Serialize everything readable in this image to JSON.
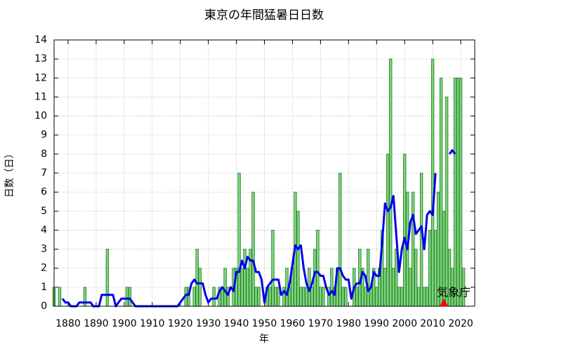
{
  "chart_data": {
    "type": "bar",
    "title": "東京の年間猛暑日日数",
    "xlabel": "年",
    "ylabel": "日数（日）",
    "annotation": "気象庁",
    "annotation_x": 2014,
    "annotation_color": "#ff0000",
    "grid": true,
    "xlim": [
      1875,
      2025
    ],
    "ylim": [
      0,
      14
    ],
    "xticks": [
      1880,
      1890,
      1900,
      1910,
      1920,
      1930,
      1940,
      1950,
      1960,
      1970,
      1980,
      1990,
      2000,
      2010,
      2020
    ],
    "yticks": [
      0,
      1,
      2,
      3,
      4,
      5,
      6,
      7,
      8,
      9,
      10,
      11,
      12,
      13,
      14
    ],
    "x": [
      1875,
      1876,
      1877,
      1878,
      1879,
      1880,
      1881,
      1882,
      1883,
      1884,
      1885,
      1886,
      1887,
      1888,
      1889,
      1890,
      1891,
      1892,
      1893,
      1894,
      1895,
      1896,
      1897,
      1898,
      1899,
      1900,
      1901,
      1902,
      1903,
      1904,
      1905,
      1906,
      1907,
      1908,
      1909,
      1910,
      1911,
      1912,
      1913,
      1914,
      1915,
      1916,
      1917,
      1918,
      1919,
      1920,
      1921,
      1922,
      1923,
      1924,
      1925,
      1926,
      1927,
      1928,
      1929,
      1930,
      1931,
      1932,
      1933,
      1934,
      1935,
      1936,
      1937,
      1938,
      1939,
      1940,
      1941,
      1942,
      1943,
      1944,
      1945,
      1946,
      1947,
      1948,
      1949,
      1950,
      1951,
      1952,
      1953,
      1954,
      1955,
      1956,
      1957,
      1958,
      1959,
      1960,
      1961,
      1962,
      1963,
      1964,
      1965,
      1966,
      1967,
      1968,
      1969,
      1970,
      1971,
      1972,
      1973,
      1974,
      1975,
      1976,
      1977,
      1978,
      1979,
      1980,
      1981,
      1982,
      1983,
      1984,
      1985,
      1986,
      1987,
      1988,
      1989,
      1990,
      1991,
      1992,
      1993,
      1994,
      1995,
      1996,
      1997,
      1998,
      1999,
      2000,
      2001,
      2002,
      2003,
      2004,
      2005,
      2006,
      2007,
      2008,
      2009,
      2010,
      2011,
      2012,
      2013,
      2014,
      2015,
      2016,
      2017,
      2018,
      2019,
      2020,
      2021
    ],
    "series": [
      {
        "type": "bar",
        "color": "#7fd37f",
        "edge_color": "#1f7a1f",
        "values": [
          1,
          0,
          1,
          0,
          0,
          0,
          0,
          0,
          0,
          0,
          0,
          1,
          0,
          0,
          0,
          0,
          0,
          0,
          0,
          3,
          0,
          0,
          0,
          0,
          0,
          0,
          1,
          1,
          0,
          0,
          0,
          0,
          0,
          0,
          0,
          0,
          0,
          0,
          0,
          0,
          0,
          0,
          0,
          0,
          0,
          0,
          0,
          1,
          1,
          0,
          1,
          3,
          2,
          0,
          0,
          0,
          0,
          1,
          0,
          1,
          1,
          2,
          1,
          0,
          2,
          2,
          7,
          2,
          3,
          2,
          3,
          6,
          1,
          1,
          0,
          0,
          1,
          1,
          4,
          1,
          1,
          0,
          1,
          2,
          1,
          2,
          6,
          5,
          1,
          1,
          1,
          2,
          1,
          3,
          4,
          1,
          1,
          0,
          1,
          2,
          1,
          2,
          7,
          1,
          1,
          0,
          0,
          2,
          1,
          3,
          2,
          1,
          3,
          1,
          2,
          1,
          2,
          4,
          2,
          8,
          13,
          2,
          3,
          1,
          1,
          8,
          6,
          2,
          6,
          3,
          1,
          7,
          1,
          1,
          4,
          13,
          4,
          6,
          12,
          5,
          11,
          3,
          2,
          12,
          12,
          12,
          2
        ]
      },
      {
        "type": "line",
        "color": "#0000ee",
        "values": [
          null,
          null,
          null,
          0.4,
          0.2,
          0.2,
          0,
          0,
          0,
          0.2,
          0.2,
          0.2,
          0.2,
          0.2,
          0,
          0,
          0,
          0.6,
          0.6,
          0.6,
          0.6,
          0.6,
          0,
          0.2,
          0.4,
          0.4,
          0.4,
          0.4,
          0.2,
          0,
          0,
          0,
          0,
          0,
          0,
          0,
          0,
          0,
          0,
          0,
          0,
          0,
          0,
          0,
          0,
          0.2,
          0.4,
          0.6,
          0.6,
          1.2,
          1.4,
          1.2,
          1.2,
          1.2,
          0.6,
          0.2,
          0.4,
          0.4,
          0.4,
          0.8,
          1.0,
          0.8,
          0.6,
          1.0,
          0.8,
          1.8,
          1.8,
          2.4,
          2.0,
          2.6,
          2.4,
          2.4,
          1.8,
          1.8,
          1.4,
          0.2,
          1.0,
          1.2,
          1.4,
          1.4,
          1.4,
          0.6,
          0.8,
          0.6,
          1.2,
          2.2,
          3.2,
          3.0,
          3.2,
          2.0,
          1.2,
          0.8,
          1.2,
          1.8,
          1.8,
          1.6,
          1.6,
          1.0,
          0.6,
          0.8,
          0.6,
          2.0,
          2.0,
          1.6,
          1.4,
          1.4,
          0.4,
          1.0,
          1.2,
          1.2,
          1.8,
          1.6,
          0.8,
          1.0,
          1.8,
          1.6,
          1.6,
          3.4,
          5.4,
          5.0,
          5.2,
          5.8,
          3.8,
          1.8,
          3.0,
          3.6,
          3.0,
          4.4,
          4.8,
          3.8,
          4.0,
          4.2,
          3.0,
          4.8,
          5.0,
          4.8,
          7.0,
          null,
          null,
          null,
          null,
          8.0,
          8.2,
          8.0,
          null,
          null,
          null
        ]
      }
    ]
  }
}
